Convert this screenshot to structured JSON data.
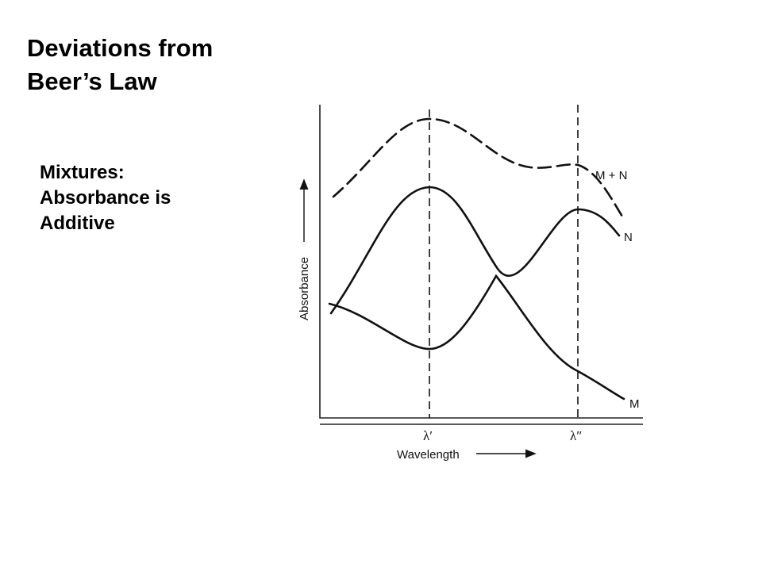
{
  "slide": {
    "title_line1": "Deviations from",
    "title_line2": "Beer’s Law",
    "subtitle_line1": "Mixtures:",
    "subtitle_line2": "Absorbance is",
    "subtitle_line3": "Additive"
  },
  "diagram": {
    "x_axis_label": "Wavelength",
    "y_axis_label": "Absorbance",
    "tick_lambda1": "λ′",
    "tick_lambda2": "λ″",
    "curve_labels": {
      "mixture": "M + N",
      "n": "N",
      "m": "M"
    }
  }
}
